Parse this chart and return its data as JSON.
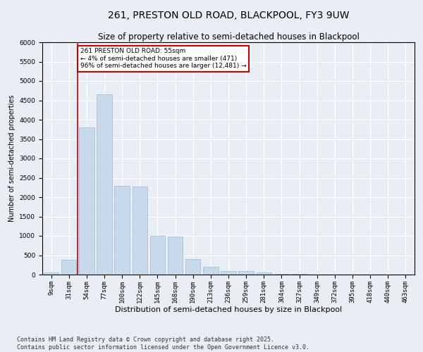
{
  "title1": "261, PRESTON OLD ROAD, BLACKPOOL, FY3 9UW",
  "title2": "Size of property relative to semi-detached houses in Blackpool",
  "xlabel": "Distribution of semi-detached houses by size in Blackpool",
  "ylabel": "Number of semi-detached properties",
  "categories": [
    "9sqm",
    "31sqm",
    "54sqm",
    "77sqm",
    "100sqm",
    "122sqm",
    "145sqm",
    "168sqm",
    "190sqm",
    "213sqm",
    "236sqm",
    "259sqm",
    "281sqm",
    "304sqm",
    "327sqm",
    "349sqm",
    "372sqm",
    "395sqm",
    "418sqm",
    "440sqm",
    "463sqm"
  ],
  "values": [
    50,
    390,
    3800,
    4650,
    2300,
    2280,
    1000,
    990,
    400,
    200,
    100,
    100,
    50,
    20,
    10,
    5,
    5,
    3,
    2,
    1,
    1
  ],
  "bar_color": "#c9d9ec",
  "bar_edge_color": "#a0b8d0",
  "annotation_text": "261 PRESTON OLD ROAD: 55sqm\n← 4% of semi-detached houses are smaller (471)\n96% of semi-detached houses are larger (12,481) →",
  "annotation_box_color": "#ffffff",
  "annotation_edge_color": "#cc0000",
  "vline_color": "#cc0000",
  "vline_x": 1.5,
  "ylim": [
    0,
    6000
  ],
  "yticks": [
    0,
    500,
    1000,
    1500,
    2000,
    2500,
    3000,
    3500,
    4000,
    4500,
    5000,
    5500,
    6000
  ],
  "footer1": "Contains HM Land Registry data © Crown copyright and database right 2025.",
  "footer2": "Contains public sector information licensed under the Open Government Licence v3.0.",
  "bg_color": "#e8eef4",
  "plot_bg_color": "#e8eef4",
  "title1_fontsize": 10,
  "title2_fontsize": 8.5,
  "xlabel_fontsize": 8,
  "ylabel_fontsize": 7,
  "tick_fontsize": 6.5,
  "footer_fontsize": 6
}
